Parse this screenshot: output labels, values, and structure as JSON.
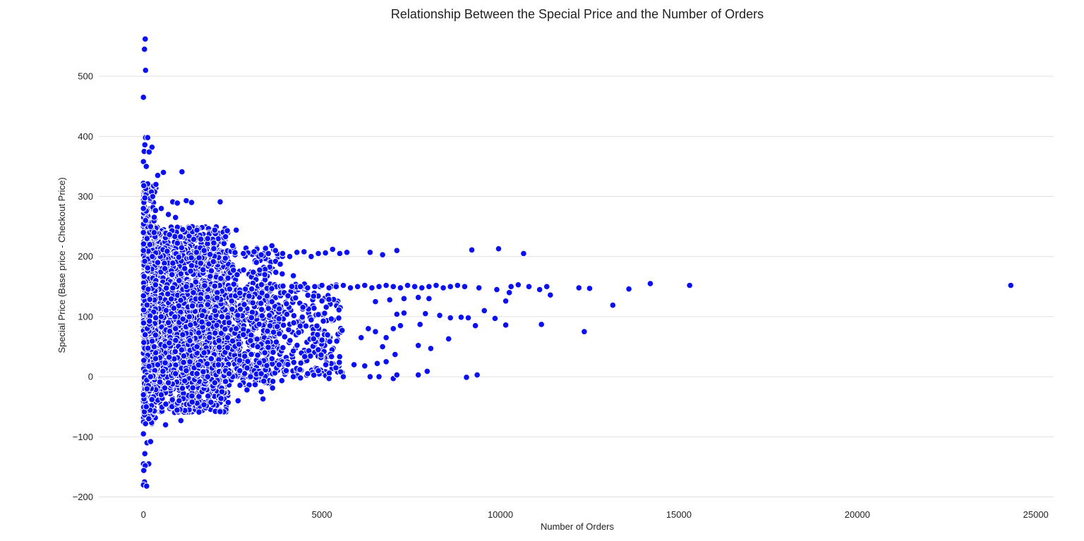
{
  "chart_data": {
    "type": "scatter",
    "title": "Relationship Between the Special Price and the Number of Orders",
    "xlabel": "Number of Orders",
    "ylabel": "Special Price (Base price - Checkout Price)",
    "xlim": [
      -1250,
      25500
    ],
    "ylim": [
      -210,
      580
    ],
    "xticks": [
      0,
      5000,
      10000,
      15000,
      20000,
      25000
    ],
    "yticks": [
      -200,
      -100,
      0,
      100,
      200,
      300,
      400,
      500
    ],
    "grid": "horizontal",
    "legend": "none",
    "point_color": "#0a10f2",
    "series": [
      {
        "points": [
          [
            50,
            562
          ],
          [
            30,
            545
          ],
          [
            60,
            510
          ],
          [
            0,
            465
          ],
          [
            60,
            398
          ],
          [
            120,
            398
          ],
          [
            40,
            386
          ],
          [
            240,
            382
          ],
          [
            20,
            375
          ],
          [
            160,
            374
          ],
          [
            0,
            358
          ],
          [
            80,
            350
          ],
          [
            560,
            340
          ],
          [
            1080,
            341
          ],
          [
            0,
            322
          ],
          [
            120,
            321
          ],
          [
            350,
            320
          ],
          [
            400,
            335
          ],
          [
            820,
            291
          ],
          [
            1200,
            293
          ],
          [
            1350,
            290
          ],
          [
            950,
            289
          ],
          [
            2150,
            291
          ],
          [
            10,
            318
          ],
          [
            260,
            300
          ],
          [
            500,
            280
          ],
          [
            700,
            270
          ],
          [
            900,
            265
          ],
          [
            1100,
            245
          ],
          [
            1500,
            244
          ],
          [
            2000,
            244
          ],
          [
            2350,
            243
          ],
          [
            2600,
            244
          ],
          [
            1800,
            230
          ],
          [
            2300,
            233
          ],
          [
            1700,
            210
          ],
          [
            2500,
            218
          ],
          [
            2800,
            205
          ],
          [
            3100,
            208
          ],
          [
            3300,
            203
          ],
          [
            3500,
            205
          ],
          [
            3700,
            210
          ],
          [
            3900,
            205
          ],
          [
            4100,
            200
          ],
          [
            4300,
            207
          ],
          [
            4500,
            208
          ],
          [
            4700,
            200
          ],
          [
            4900,
            205
          ],
          [
            5100,
            206
          ],
          [
            5300,
            212
          ],
          [
            5500,
            205
          ],
          [
            5700,
            207
          ],
          [
            6350,
            207
          ],
          [
            6700,
            203
          ],
          [
            7100,
            210
          ],
          [
            9200,
            211
          ],
          [
            9950,
            213
          ],
          [
            10650,
            205
          ],
          [
            3600,
            218
          ],
          [
            4200,
            168
          ],
          [
            3400,
            170
          ],
          [
            4400,
            150
          ],
          [
            4600,
            148
          ],
          [
            4800,
            150
          ],
          [
            5000,
            152
          ],
          [
            5200,
            148
          ],
          [
            5400,
            150
          ],
          [
            5600,
            152
          ],
          [
            5800,
            148
          ],
          [
            6000,
            150
          ],
          [
            6200,
            152
          ],
          [
            6400,
            148
          ],
          [
            6600,
            150
          ],
          [
            6800,
            152
          ],
          [
            7000,
            150
          ],
          [
            7200,
            148
          ],
          [
            7400,
            152
          ],
          [
            7600,
            150
          ],
          [
            7800,
            148
          ],
          [
            8000,
            150
          ],
          [
            8200,
            152
          ],
          [
            8400,
            148
          ],
          [
            8600,
            150
          ],
          [
            8800,
            152
          ],
          [
            9000,
            150
          ],
          [
            9400,
            148
          ],
          [
            9900,
            145
          ],
          [
            10300,
            150
          ],
          [
            10500,
            153
          ],
          [
            10800,
            150
          ],
          [
            11100,
            145
          ],
          [
            11300,
            150
          ],
          [
            11400,
            136
          ],
          [
            12200,
            148
          ],
          [
            12500,
            147
          ],
          [
            13600,
            146
          ],
          [
            14200,
            155
          ],
          [
            15300,
            152
          ],
          [
            24300,
            152
          ],
          [
            6500,
            125
          ],
          [
            6900,
            128
          ],
          [
            7300,
            130
          ],
          [
            7700,
            132
          ],
          [
            8000,
            130
          ],
          [
            7100,
            104
          ],
          [
            7300,
            106
          ],
          [
            7900,
            105
          ],
          [
            8300,
            102
          ],
          [
            8600,
            98
          ],
          [
            8900,
            99
          ],
          [
            9100,
            98
          ],
          [
            9550,
            110
          ],
          [
            9850,
            97
          ],
          [
            10150,
            126
          ],
          [
            10250,
            140
          ],
          [
            13150,
            119
          ],
          [
            6300,
            80
          ],
          [
            6500,
            75
          ],
          [
            6800,
            65
          ],
          [
            7000,
            80
          ],
          [
            7200,
            85
          ],
          [
            7750,
            87
          ],
          [
            9300,
            85
          ],
          [
            10150,
            86
          ],
          [
            11150,
            87
          ],
          [
            12350,
            75
          ],
          [
            6100,
            65
          ],
          [
            6700,
            50
          ],
          [
            7050,
            37
          ],
          [
            7700,
            52
          ],
          [
            8050,
            47
          ],
          [
            8550,
            63
          ],
          [
            5900,
            20
          ],
          [
            6200,
            18
          ],
          [
            6550,
            22
          ],
          [
            6800,
            25
          ],
          [
            6350,
            0
          ],
          [
            6600,
            0
          ],
          [
            7000,
            -3
          ],
          [
            7100,
            3
          ],
          [
            7700,
            3
          ],
          [
            7950,
            9
          ],
          [
            9050,
            -1
          ],
          [
            9350,
            3
          ],
          [
            5200,
            -3
          ],
          [
            5600,
            0
          ],
          [
            4600,
            5
          ],
          [
            4900,
            10
          ],
          [
            3300,
            -25
          ],
          [
            3350,
            -37
          ],
          [
            2650,
            -40
          ],
          [
            2900,
            -22
          ],
          [
            1050,
            -73
          ],
          [
            620,
            -80
          ],
          [
            1000,
            -40
          ],
          [
            2200,
            -25
          ],
          [
            0,
            -30
          ],
          [
            80,
            -50
          ],
          [
            150,
            -70
          ],
          [
            0,
            -95
          ],
          [
            100,
            -110
          ],
          [
            200,
            -108
          ],
          [
            40,
            -128
          ],
          [
            0,
            -145
          ],
          [
            150,
            -145
          ],
          [
            50,
            -148
          ],
          [
            10,
            -156
          ],
          [
            30,
            -175
          ],
          [
            0,
            -180
          ],
          [
            90,
            -182
          ],
          [
            0,
            280
          ],
          [
            60,
            260
          ],
          [
            200,
            250
          ],
          [
            300,
            240
          ],
          [
            0,
            240
          ],
          [
            100,
            230
          ],
          [
            180,
            220
          ],
          [
            0,
            210
          ],
          [
            250,
            200
          ],
          [
            400,
            190
          ],
          [
            600,
            180
          ],
          [
            800,
            170
          ],
          [
            1000,
            160
          ],
          [
            1200,
            150
          ],
          [
            1400,
            140
          ],
          [
            1600,
            130
          ],
          [
            1800,
            120
          ],
          [
            2000,
            110
          ],
          [
            2200,
            100
          ],
          [
            2400,
            90
          ],
          [
            2600,
            80
          ],
          [
            2800,
            70
          ],
          [
            3000,
            60
          ],
          [
            3200,
            50
          ],
          [
            3400,
            40
          ],
          [
            3600,
            30
          ],
          [
            3800,
            20
          ],
          [
            4000,
            10
          ],
          [
            4200,
            0
          ],
          [
            4400,
            -2
          ],
          [
            3000,
            0
          ],
          [
            2000,
            -10
          ],
          [
            500,
            100
          ],
          [
            700,
            90
          ],
          [
            900,
            80
          ],
          [
            1100,
            70
          ],
          [
            1300,
            60
          ],
          [
            1500,
            50
          ],
          [
            1700,
            40
          ],
          [
            1900,
            30
          ],
          [
            2100,
            20
          ],
          [
            2300,
            10
          ],
          [
            2500,
            0
          ],
          [
            300,
            50
          ],
          [
            400,
            20
          ],
          [
            200,
            0
          ],
          [
            100,
            -20
          ],
          [
            500,
            -30
          ],
          [
            700,
            -10
          ],
          [
            900,
            5
          ],
          [
            1200,
            10
          ],
          [
            1500,
            5
          ],
          [
            1800,
            0
          ],
          [
            2400,
            5
          ],
          [
            2700,
            10
          ],
          [
            3300,
            5
          ]
        ]
      }
    ]
  }
}
